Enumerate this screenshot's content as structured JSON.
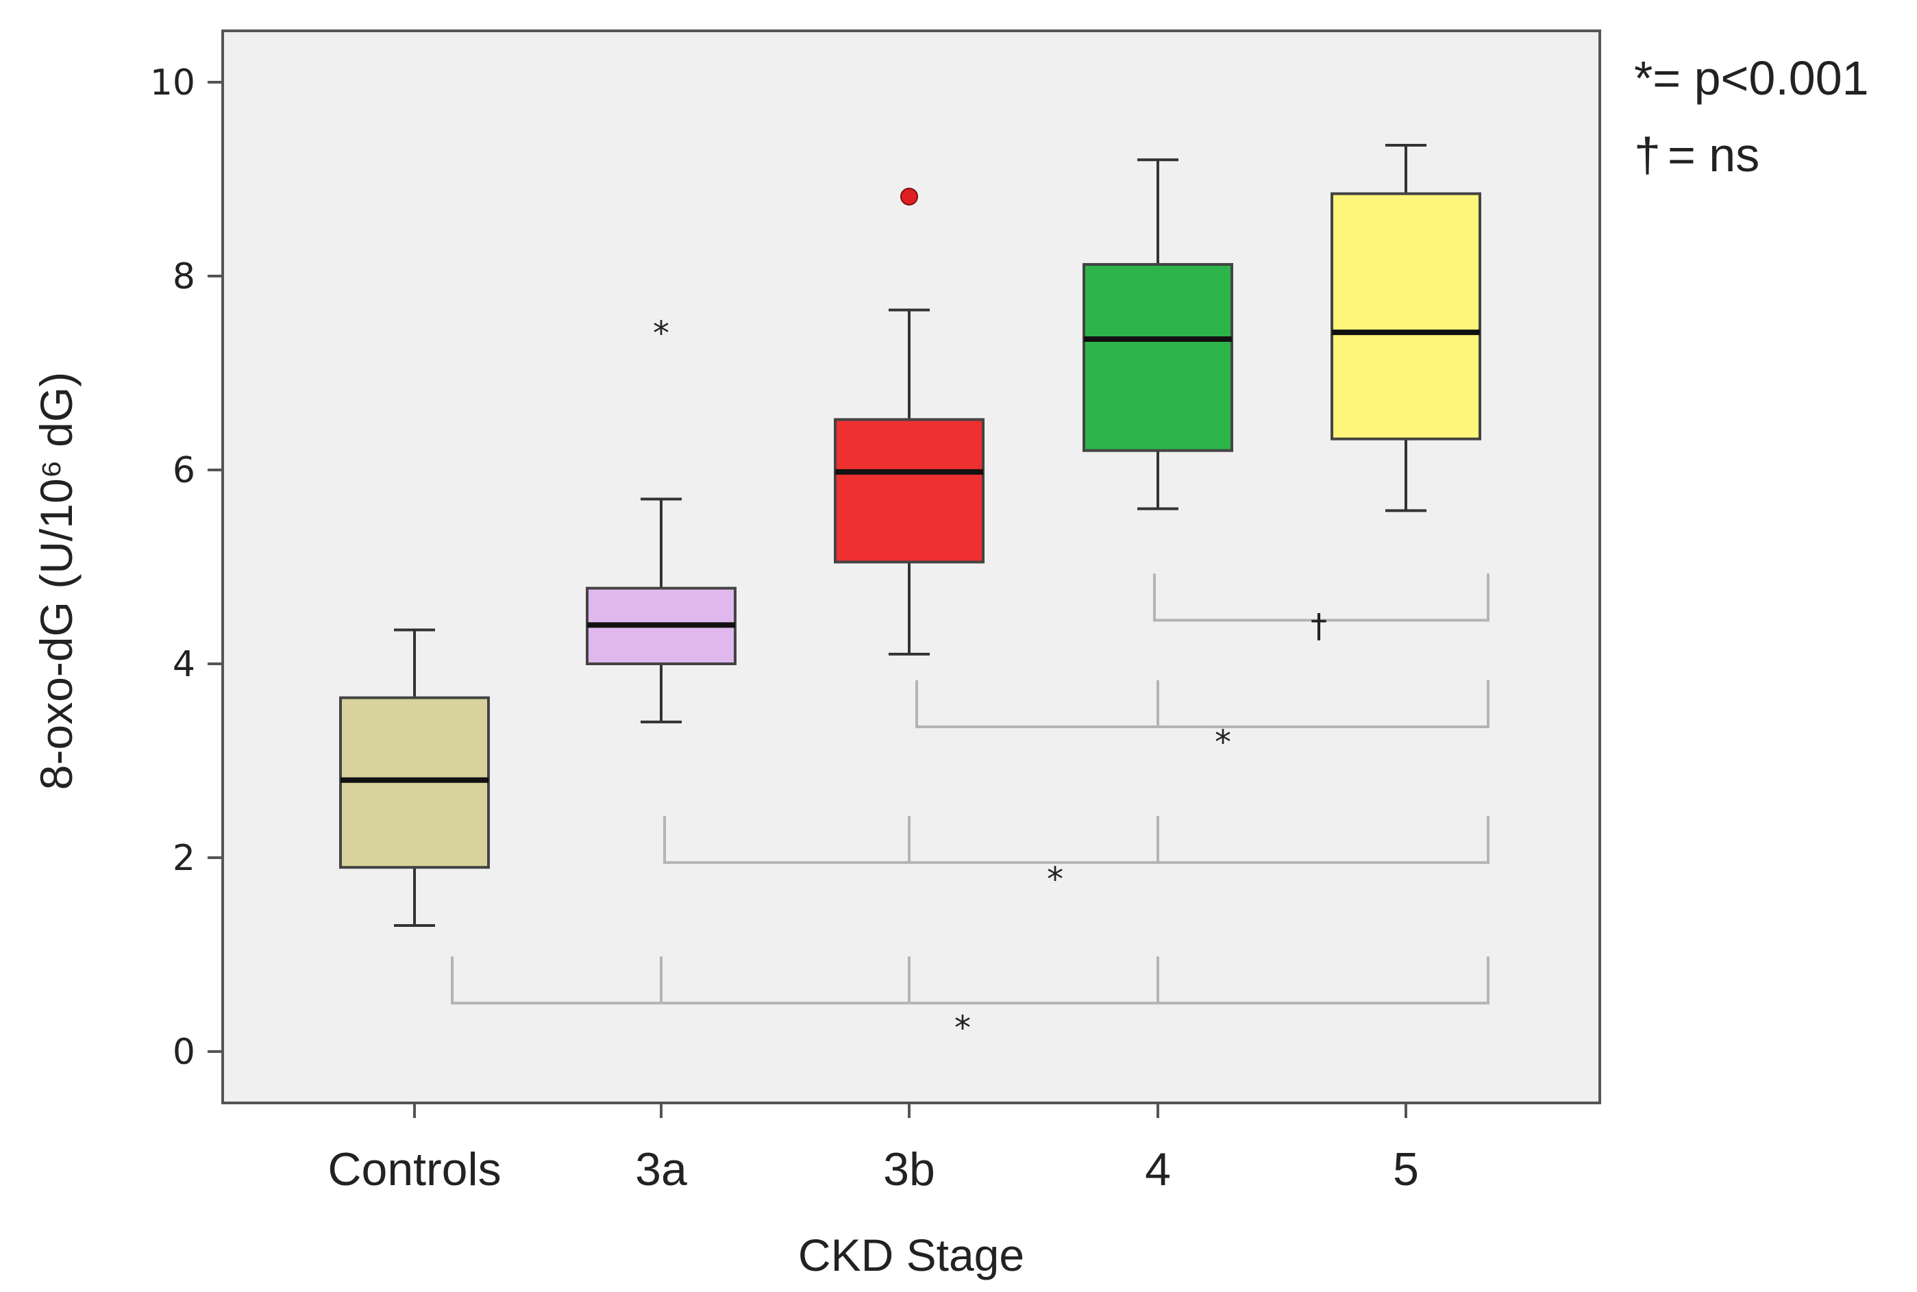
{
  "chart_data": {
    "type": "box",
    "xlabel": "CKD Stage",
    "ylabel": "8-oxo-dG (U/10⁶ dG)",
    "ylim": [
      0,
      10
    ],
    "yticks": [
      0,
      2,
      4,
      6,
      8,
      10
    ],
    "grid": false,
    "plot_background": "#f0f0f0",
    "categories": [
      "Controls",
      "3a",
      "3b",
      "4",
      "5"
    ],
    "boxes": [
      {
        "category": "Controls",
        "whisker_low": 1.3,
        "q1": 1.9,
        "median": 2.8,
        "q3": 3.65,
        "whisker_high": 4.35,
        "color": "#d8d29c",
        "outliers": []
      },
      {
        "category": "3a",
        "whisker_low": 3.4,
        "q1": 4.0,
        "median": 4.4,
        "q3": 4.78,
        "whisker_high": 5.7,
        "color": "#e0b8ee",
        "outliers": [
          {
            "value": 7.45,
            "marker": "*"
          }
        ]
      },
      {
        "category": "3b",
        "whisker_low": 4.1,
        "q1": 5.05,
        "median": 5.98,
        "q3": 6.52,
        "whisker_high": 7.65,
        "color": "#ee3030",
        "outliers": [
          {
            "value": 8.82,
            "marker": "o"
          }
        ]
      },
      {
        "category": "4",
        "whisker_low": 5.6,
        "q1": 6.2,
        "median": 7.35,
        "q3": 8.12,
        "whisker_high": 9.2,
        "color": "#2db44a",
        "outliers": []
      },
      {
        "category": "5",
        "whisker_low": 5.58,
        "q1": 6.32,
        "median": 7.42,
        "q3": 8.85,
        "whisker_high": 9.35,
        "color": "#fdf67a",
        "outliers": []
      }
    ],
    "comparisons": [
      {
        "from": "4",
        "to": "5",
        "marker": "†",
        "y": 4.45
      },
      {
        "from": "3b",
        "to": "5",
        "marker": "*",
        "y": 3.35
      },
      {
        "from": "3a",
        "to": "5",
        "marker": "*",
        "y": 1.95
      },
      {
        "from": "Controls",
        "to": "5",
        "marker": "*",
        "y": 0.5
      }
    ],
    "legend": {
      "placement": "top-right",
      "entries": [
        {
          "symbol": "*",
          "text": "= p<0.001"
        },
        {
          "symbol": "†",
          "text": "= ns"
        }
      ]
    }
  }
}
